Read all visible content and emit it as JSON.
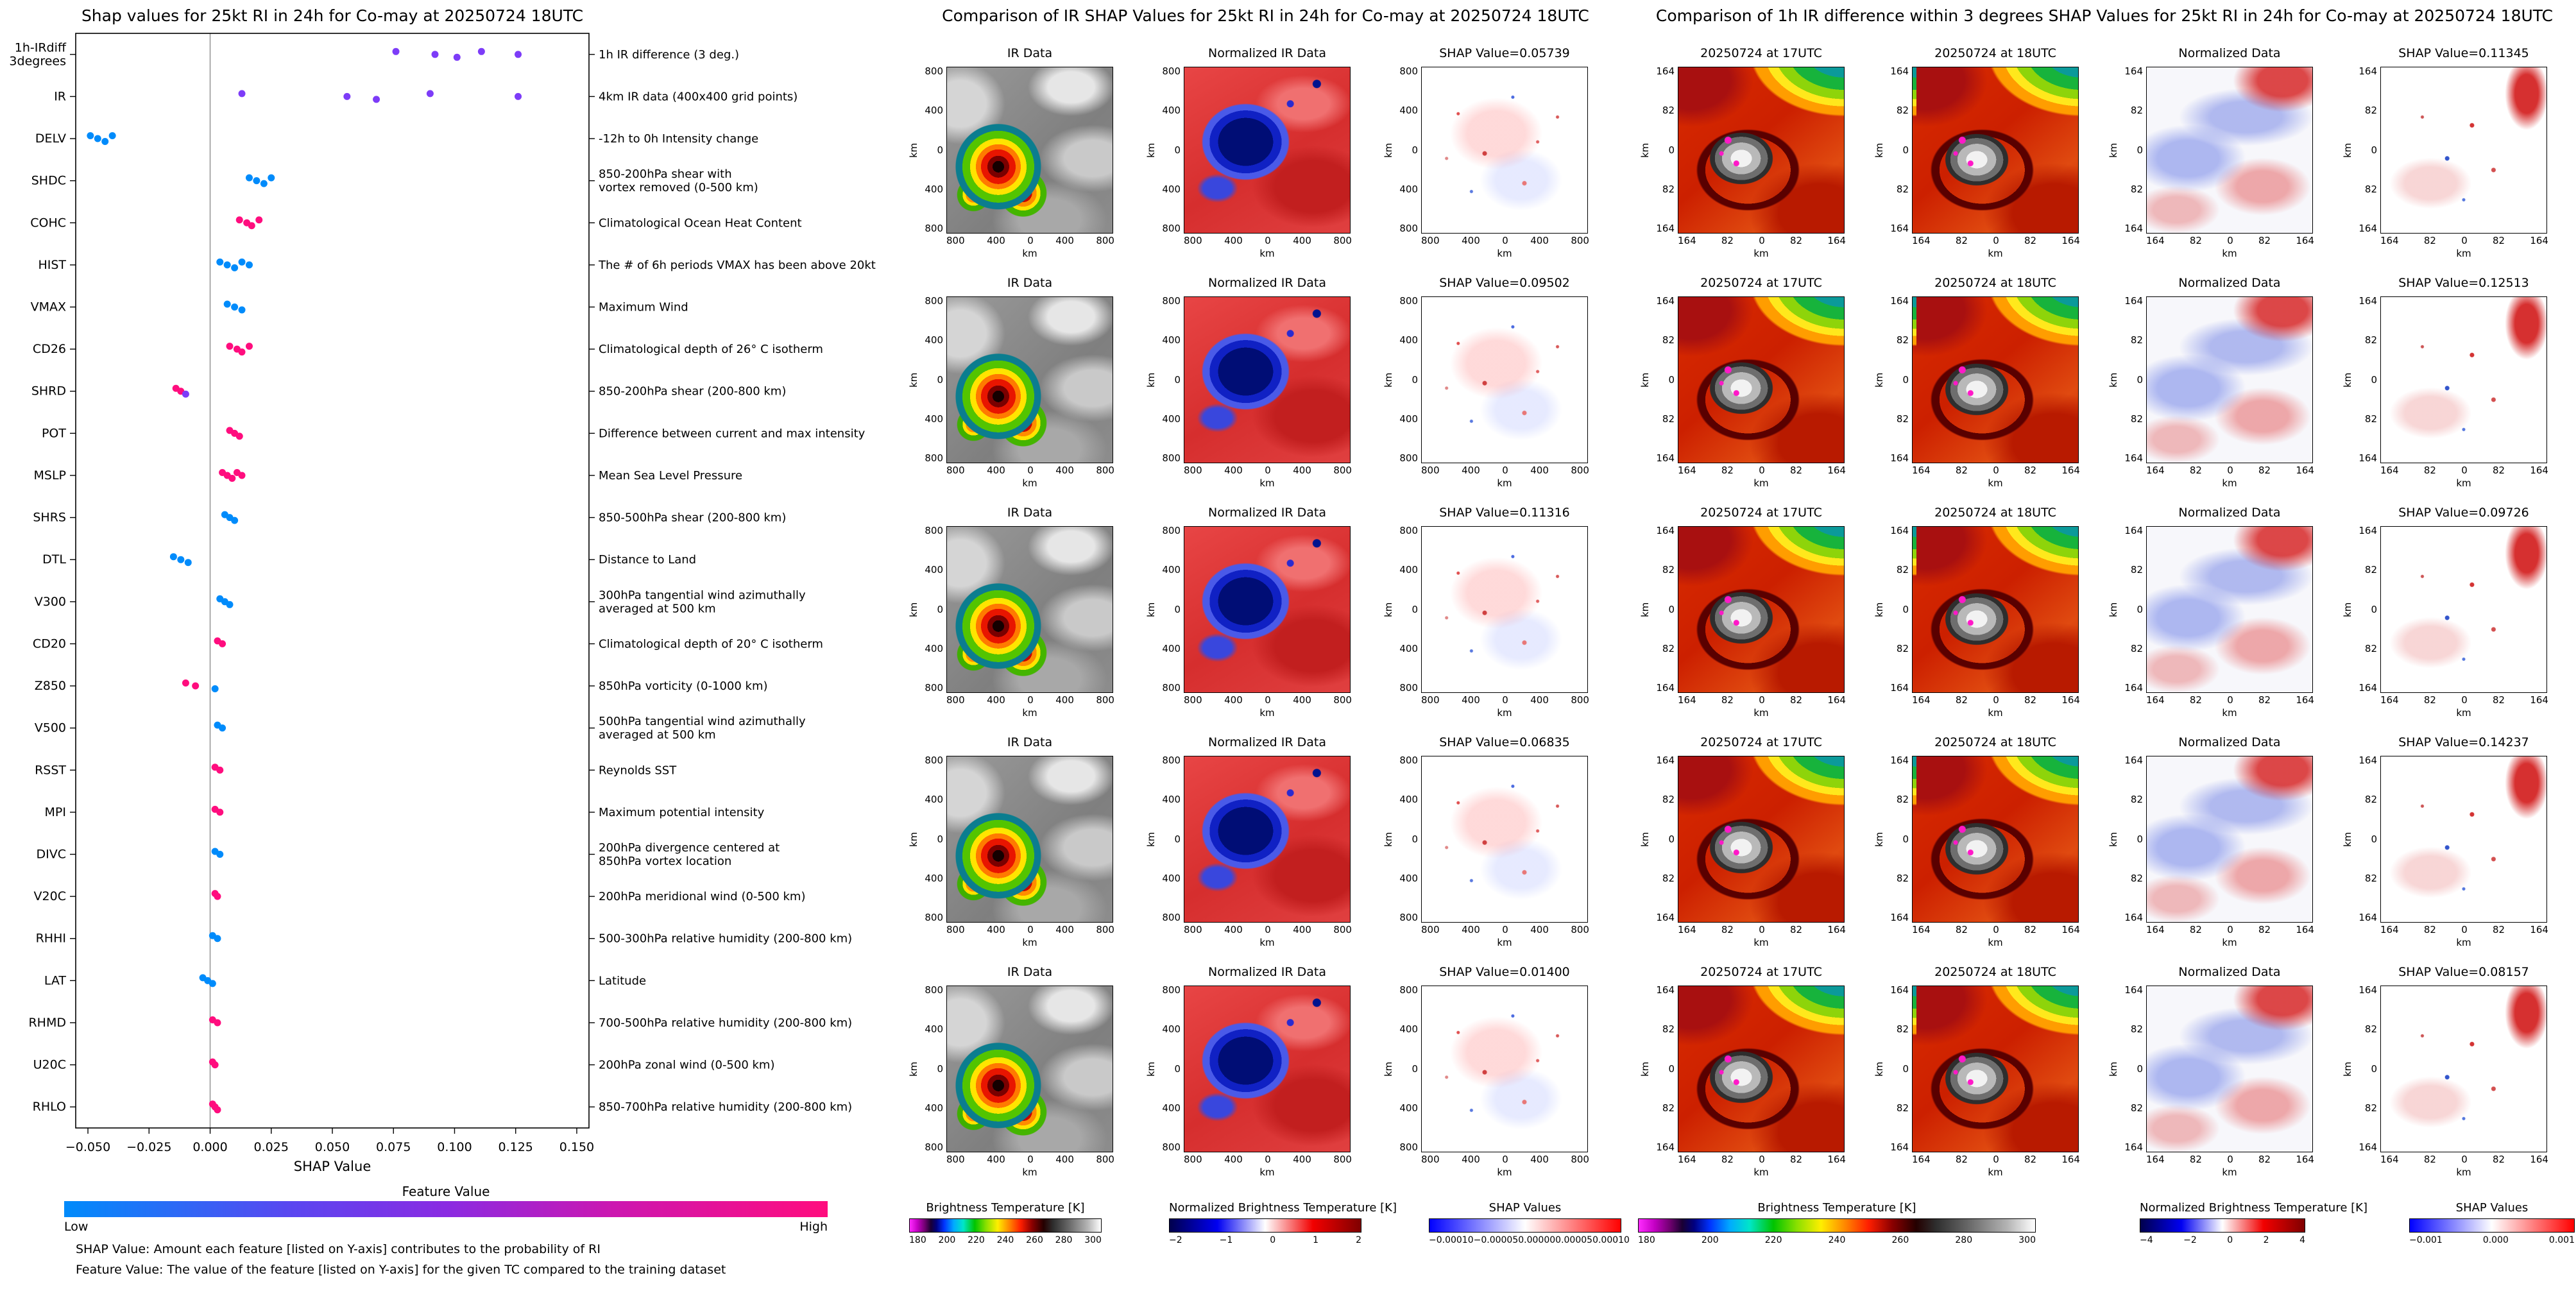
{
  "chart_data": [
    {
      "type": "scatter",
      "variant": "shap-beeswarm",
      "title": "Shap values for 25kt RI in 24h for Co-may at 20250724 18UTC",
      "xlabel": "SHAP Value",
      "xlim": [
        -0.055,
        0.155
      ],
      "xticks": [
        -0.05,
        -0.025,
        0.0,
        0.025,
        0.05,
        0.075,
        0.1,
        0.125,
        0.15
      ],
      "grid": false,
      "point_colors": {
        "low": "#008bfb",
        "mid": "#7d3cf8",
        "high": "#ff0d7e"
      },
      "features": [
        {
          "label": "1h-IRdiff\n3degrees",
          "desc": "1h IR difference (3 deg.)",
          "points": [
            [
              0.076,
              "p"
            ],
            [
              0.092,
              "p"
            ],
            [
              0.101,
              "p"
            ],
            [
              0.111,
              "p"
            ],
            [
              0.126,
              "p"
            ]
          ]
        },
        {
          "label": "IR",
          "desc": "4km IR data (400x400 grid points)",
          "points": [
            [
              0.013,
              "p"
            ],
            [
              0.056,
              "p"
            ],
            [
              0.068,
              "p"
            ],
            [
              0.09,
              "p"
            ],
            [
              0.126,
              "p"
            ]
          ]
        },
        {
          "label": "DELV",
          "desc": "-12h to 0h Intensity change",
          "points": [
            [
              -0.049,
              "b"
            ],
            [
              -0.046,
              "b"
            ],
            [
              -0.043,
              "b"
            ],
            [
              -0.04,
              "b"
            ]
          ]
        },
        {
          "label": "SHDC",
          "desc": "850-200hPa shear with\nvortex removed (0-500 km)",
          "points": [
            [
              0.016,
              "b"
            ],
            [
              0.019,
              "b"
            ],
            [
              0.022,
              "b"
            ],
            [
              0.025,
              "b"
            ]
          ]
        },
        {
          "label": "COHC",
          "desc": "Climatological Ocean Heat Content",
          "points": [
            [
              0.012,
              "m"
            ],
            [
              0.015,
              "m"
            ],
            [
              0.017,
              "m"
            ],
            [
              0.02,
              "m"
            ]
          ]
        },
        {
          "label": "HIST",
          "desc": "The # of 6h periods VMAX has been above 20kt",
          "points": [
            [
              0.004,
              "b"
            ],
            [
              0.007,
              "b"
            ],
            [
              0.01,
              "b"
            ],
            [
              0.013,
              "b"
            ],
            [
              0.016,
              "b"
            ]
          ]
        },
        {
          "label": "VMAX",
          "desc": "Maximum Wind",
          "points": [
            [
              0.007,
              "b"
            ],
            [
              0.01,
              "b"
            ],
            [
              0.013,
              "b"
            ]
          ]
        },
        {
          "label": "CD26",
          "desc": "Climatological depth of 26° C isotherm",
          "points": [
            [
              0.008,
              "m"
            ],
            [
              0.011,
              "m"
            ],
            [
              0.013,
              "m"
            ],
            [
              0.016,
              "m"
            ]
          ]
        },
        {
          "label": "SHRD",
          "desc": "850-200hPa shear (200-800 km)",
          "points": [
            [
              -0.014,
              "m"
            ],
            [
              -0.012,
              "m"
            ],
            [
              -0.01,
              "p"
            ]
          ]
        },
        {
          "label": "POT",
          "desc": "Difference between current and max intensity",
          "points": [
            [
              0.008,
              "m"
            ],
            [
              0.01,
              "m"
            ],
            [
              0.012,
              "m"
            ]
          ]
        },
        {
          "label": "MSLP",
          "desc": "Mean Sea Level Pressure",
          "points": [
            [
              0.005,
              "m"
            ],
            [
              0.007,
              "m"
            ],
            [
              0.009,
              "m"
            ],
            [
              0.011,
              "m"
            ],
            [
              0.013,
              "m"
            ]
          ]
        },
        {
          "label": "SHRS",
          "desc": "850-500hPa shear (200-800 km)",
          "points": [
            [
              0.006,
              "b"
            ],
            [
              0.008,
              "b"
            ],
            [
              0.01,
              "b"
            ]
          ]
        },
        {
          "label": "DTL",
          "desc": "Distance to Land",
          "points": [
            [
              -0.015,
              "b"
            ],
            [
              -0.012,
              "b"
            ],
            [
              -0.009,
              "b"
            ]
          ]
        },
        {
          "label": "V300",
          "desc": "300hPa tangential wind azimuthally\naveraged at 500 km",
          "points": [
            [
              0.004,
              "b"
            ],
            [
              0.006,
              "b"
            ],
            [
              0.008,
              "b"
            ]
          ]
        },
        {
          "label": "CD20",
          "desc": "Climatological depth of 20° C isotherm",
          "points": [
            [
              0.003,
              "m"
            ],
            [
              0.005,
              "m"
            ]
          ]
        },
        {
          "label": "Z850",
          "desc": "850hPa vorticity (0-1000 km)",
          "points": [
            [
              -0.01,
              "m"
            ],
            [
              -0.006,
              "m"
            ],
            [
              0.002,
              "b"
            ]
          ]
        },
        {
          "label": "V500",
          "desc": "500hPa tangential wind azimuthally\naveraged at 500 km",
          "points": [
            [
              0.003,
              "b"
            ],
            [
              0.005,
              "b"
            ]
          ]
        },
        {
          "label": "RSST",
          "desc": "Reynolds SST",
          "points": [
            [
              0.002,
              "m"
            ],
            [
              0.004,
              "m"
            ]
          ]
        },
        {
          "label": "MPI",
          "desc": "Maximum potential intensity",
          "points": [
            [
              0.002,
              "m"
            ],
            [
              0.004,
              "m"
            ]
          ]
        },
        {
          "label": "DIVC",
          "desc": "200hPa divergence centered at\n850hPa vortex location",
          "points": [
            [
              0.002,
              "b"
            ],
            [
              0.004,
              "b"
            ]
          ]
        },
        {
          "label": "V20C",
          "desc": "200hPa meridional wind (0-500 km)",
          "points": [
            [
              0.002,
              "m"
            ],
            [
              0.003,
              "m"
            ]
          ]
        },
        {
          "label": "RHHI",
          "desc": "500-300hPa relative humidity (200-800 km)",
          "points": [
            [
              0.001,
              "b"
            ],
            [
              0.003,
              "b"
            ]
          ]
        },
        {
          "label": "LAT",
          "desc": "Latitude",
          "points": [
            [
              -0.003,
              "b"
            ],
            [
              -0.001,
              "b"
            ],
            [
              0.001,
              "b"
            ]
          ]
        },
        {
          "label": "RHMD",
          "desc": "700-500hPa relative humidity (200-800 km)",
          "points": [
            [
              0.001,
              "m"
            ],
            [
              0.003,
              "m"
            ]
          ]
        },
        {
          "label": "U20C",
          "desc": "200hPa zonal wind (0-500 km)",
          "points": [
            [
              0.001,
              "m"
            ],
            [
              0.002,
              "m"
            ]
          ]
        },
        {
          "label": "RHLO",
          "desc": "850-700hPa relative humidity (200-800 km)",
          "points": [
            [
              0.001,
              "m"
            ],
            [
              0.002,
              "m"
            ],
            [
              0.003,
              "m"
            ]
          ]
        }
      ],
      "colorbar": {
        "title": "Feature Value",
        "low": "Low",
        "high": "High"
      },
      "footnotes": [
        "SHAP Value: Amount each feature [listed on Y-axis] contributes to the probability of RI",
        "Feature Value: The value of the feature [listed on Y-axis] for the given TC compared to the training dataset"
      ]
    },
    {
      "type": "heatmap",
      "variant": "ir-shap-grid",
      "title": "Comparison of IR SHAP Values for 25kt RI in 24h for Co-may at 20250724 18UTC",
      "axis_label": "km",
      "axis_ticks": [
        "800",
        "400",
        "0",
        "400",
        "800"
      ],
      "col_titles": [
        "IR Data",
        "Normalized IR Data"
      ],
      "shap_values": [
        0.05739,
        0.09502,
        0.11316,
        0.06835,
        0.014
      ],
      "shap_value_labels": [
        "SHAP Value=0.05739",
        "SHAP Value=0.09502",
        "SHAP Value=0.11316",
        "SHAP Value=0.06835",
        "SHAP Value=0.01400"
      ],
      "img_types": [
        "img-ir",
        "img-normir",
        "img-shap"
      ],
      "img_names": [
        "ir-image",
        "normalized-ir-image",
        "shap-map-image"
      ],
      "colorbars": [
        {
          "title": "Brightness Temperature [K]",
          "ticks": [
            "180",
            "200",
            "220",
            "240",
            "260",
            "280",
            "300"
          ],
          "type": "grad-ir"
        },
        {
          "title": "Normalized Brightness Temperature [K]",
          "ticks": [
            "−2",
            "−1",
            "0",
            "1",
            "2"
          ],
          "type": "grad-seismic"
        },
        {
          "title": "SHAP Values",
          "ticks": [
            "−0.00010",
            "−0.00005",
            "0.00000",
            "0.00005",
            "0.00010"
          ],
          "type": "grad-bwr"
        }
      ]
    },
    {
      "type": "heatmap",
      "variant": "ir-diff-shap-grid",
      "title": "Comparison of 1h IR difference within 3 degrees SHAP Values for 25kt RI in 24h for Co-may at 20250724 18UTC",
      "axis_label": "km",
      "axis_ticks": [
        "164",
        "82",
        "0",
        "82",
        "164"
      ],
      "col_titles": [
        "20250724 at 17UTC",
        "20250724 at 18UTC",
        "Normalized Data"
      ],
      "shap_values": [
        0.11345,
        0.12513,
        0.09726,
        0.14237,
        0.08157
      ],
      "shap_value_labels": [
        "SHAP Value=0.11345",
        "SHAP Value=0.12513",
        "SHAP Value=0.09726",
        "SHAP Value=0.14237",
        "SHAP Value=0.08157"
      ],
      "img_types": [
        "img-zoom17",
        "img-zoom18",
        "img-normzoom",
        "img-shapzoom"
      ],
      "img_names": [
        "ir-17utc-image",
        "ir-18utc-image",
        "normalized-diff-image",
        "shap-diff-map-image"
      ],
      "colorbars": [
        {
          "title": "Brightness Temperature [K]",
          "ticks": [
            "180",
            "200",
            "220",
            "240",
            "260",
            "280",
            "300"
          ],
          "type": "grad-ir"
        },
        {
          "title": "Normalized Brightness Temperature [K]",
          "ticks": [
            "−4",
            "−2",
            "0",
            "2",
            "4"
          ],
          "type": "grad-seismic"
        },
        {
          "title": "SHAP Values",
          "ticks": [
            "−0.001",
            "0.000",
            "0.001"
          ],
          "type": "grad-bwr"
        }
      ]
    }
  ]
}
